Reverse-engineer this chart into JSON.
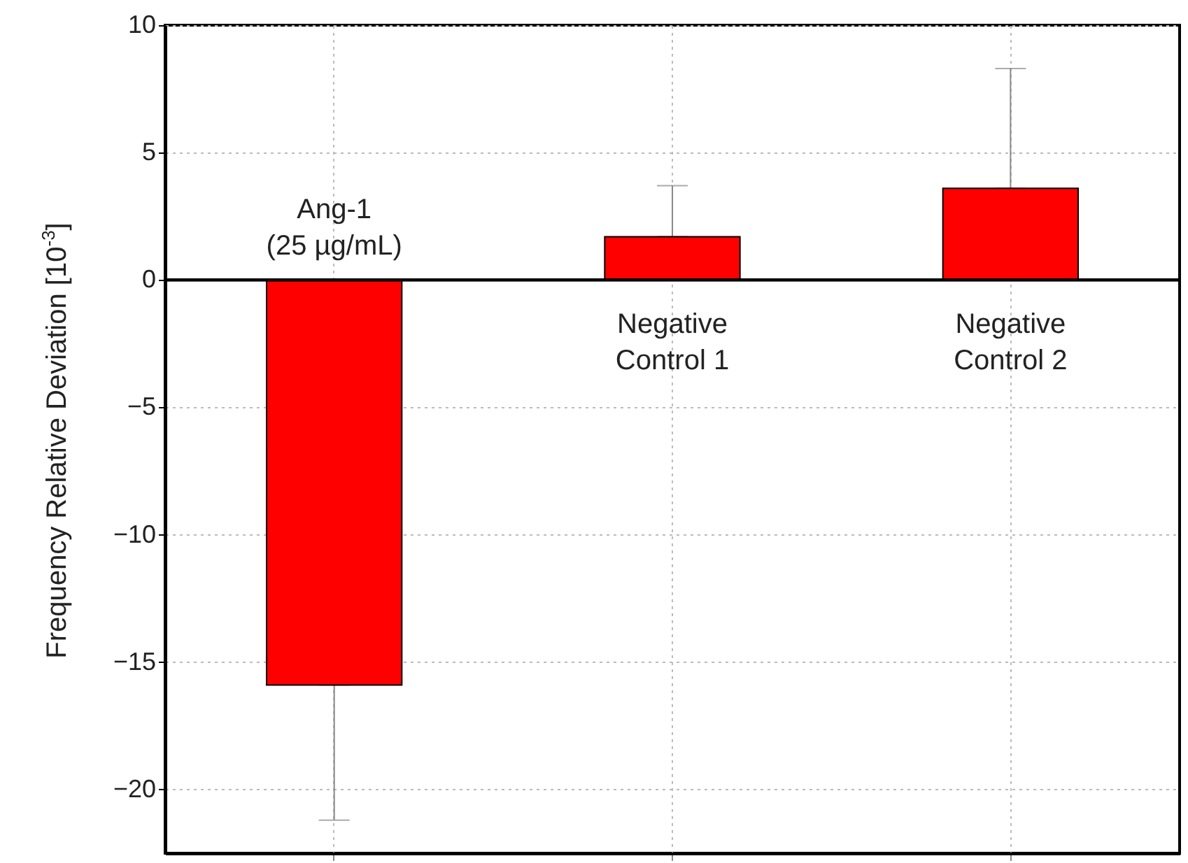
{
  "chart_data": {
    "type": "bar",
    "ylabel": "Frequency Relative Deviation [10$^{-3}$]",
    "categories": [
      "Ang-1 (25 µg/mL)",
      "Negative Control 1",
      "Negative Control 2"
    ],
    "values": [
      -15.9,
      1.7,
      3.6
    ],
    "errors": [
      [
        -21.2,
        -15.9
      ],
      [
        1.7,
        3.7
      ],
      [
        3.6,
        8.3
      ]
    ],
    "color": "#ff0000",
    "ylim": [
      -22.5,
      10
    ],
    "yticks": [
      -20,
      -15,
      -10,
      -5,
      0,
      5,
      10
    ],
    "grid": true,
    "tick_labels": "y"
  }
}
